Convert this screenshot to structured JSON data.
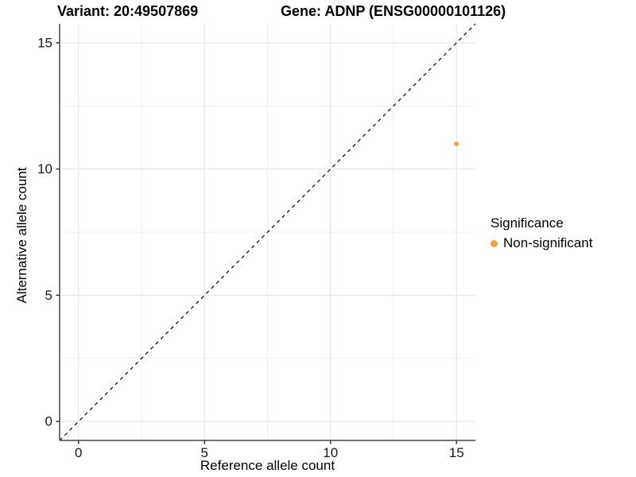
{
  "chart_data": {
    "type": "scatter",
    "title_left": "Variant: 20:49507869",
    "title_right": "Gene: ADNP (ENSG00000101126)",
    "xlabel": "Reference allele count",
    "ylabel": "Alternative allele count",
    "xlim": [
      -0.75,
      15.75
    ],
    "ylim": [
      -0.75,
      15.75
    ],
    "x_major_ticks": [
      0,
      5,
      10,
      15
    ],
    "y_major_ticks": [
      0,
      5,
      10,
      15
    ],
    "x_minor_ticks": [
      2.5,
      7.5,
      12.5
    ],
    "y_minor_ticks": [
      2.5,
      7.5,
      12.5
    ],
    "grid": true,
    "reference_line": {
      "type": "identity",
      "style": "dashed",
      "color": "#000000"
    },
    "series": [
      {
        "name": "Non-significant",
        "color": "#F9A242",
        "points": [
          {
            "x": 15,
            "y": 11
          }
        ]
      }
    ],
    "legend": {
      "title": "Significance",
      "position": "right",
      "entries": [
        {
          "label": "Non-significant",
          "color": "#F9A242"
        }
      ]
    },
    "style": {
      "grid_major_color": "#E3E3E3",
      "grid_minor_color": "#F0F0F0",
      "axis_line_color": "#464646",
      "tick_color": "#333333",
      "tick_label_color": "#1a1a1a",
      "point_radius": 3,
      "background": "#ffffff"
    }
  }
}
